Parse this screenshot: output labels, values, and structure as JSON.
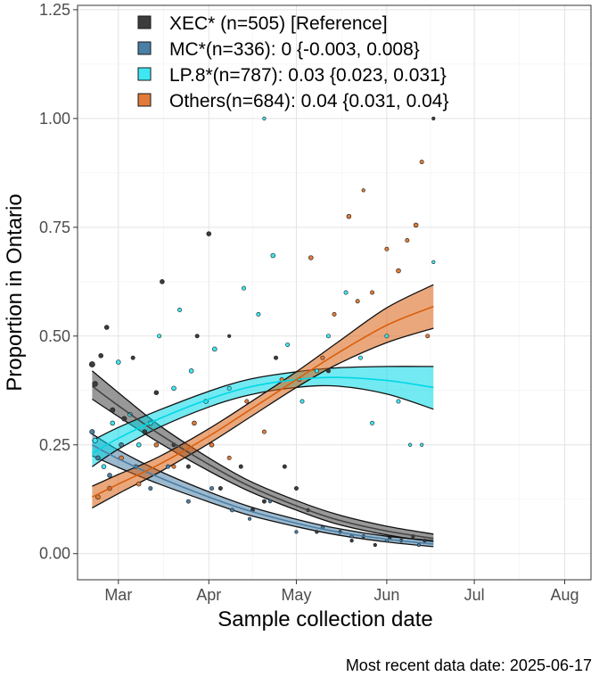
{
  "chart_data": {
    "type": "scatter",
    "title": "",
    "xlabel": "Sample collection date",
    "ylabel": "Proportion in Ontario",
    "caption": "Most recent data date: 2025-06-17",
    "xlim": [
      "2025-02-15",
      "2025-08-10"
    ],
    "ylim": [
      -0.06,
      1.26
    ],
    "x_ticks": [
      {
        "date": "2025-03-01",
        "label": "Mar"
      },
      {
        "date": "2025-04-01",
        "label": "Apr"
      },
      {
        "date": "2025-05-01",
        "label": "May"
      },
      {
        "date": "2025-06-01",
        "label": "Jun"
      },
      {
        "date": "2025-07-01",
        "label": "Jul"
      },
      {
        "date": "2025-08-01",
        "label": "Aug"
      }
    ],
    "y_ticks": [
      0.0,
      0.25,
      0.5,
      0.75,
      1.0,
      1.25
    ],
    "y_tick_labels": [
      "0.00",
      "0.25",
      "0.50",
      "0.75",
      "1.00",
      "1.25"
    ],
    "grid": true,
    "legend_position": "top-left",
    "series": [
      {
        "key": "xec",
        "legend": "XEC* (n=505)  [Reference]",
        "color": "#444444",
        "point_color": "#3c3c3c",
        "fit": [
          {
            "date": "2025-02-20",
            "y": 0.385,
            "lo": 0.355,
            "hi": 0.42
          },
          {
            "date": "2025-03-01",
            "y": 0.34,
            "lo": 0.315,
            "hi": 0.37
          },
          {
            "date": "2025-03-15",
            "y": 0.275,
            "lo": 0.255,
            "hi": 0.295
          },
          {
            "date": "2025-04-01",
            "y": 0.205,
            "lo": 0.19,
            "hi": 0.22
          },
          {
            "date": "2025-04-15",
            "y": 0.155,
            "lo": 0.143,
            "hi": 0.167
          },
          {
            "date": "2025-05-01",
            "y": 0.11,
            "lo": 0.1,
            "hi": 0.122
          },
          {
            "date": "2025-05-15",
            "y": 0.078,
            "lo": 0.068,
            "hi": 0.09
          },
          {
            "date": "2025-06-01",
            "y": 0.052,
            "lo": 0.043,
            "hi": 0.063
          },
          {
            "date": "2025-06-17",
            "y": 0.035,
            "lo": 0.027,
            "hi": 0.045
          }
        ],
        "points": [
          {
            "date": "2025-02-20",
            "y": 0.435,
            "n": 6
          },
          {
            "date": "2025-02-21",
            "y": 0.39,
            "n": 5
          },
          {
            "date": "2025-02-23",
            "y": 0.455,
            "n": 3
          },
          {
            "date": "2025-02-25",
            "y": 0.52,
            "n": 3
          },
          {
            "date": "2025-02-27",
            "y": 0.33,
            "n": 4
          },
          {
            "date": "2025-03-03",
            "y": 0.31,
            "n": 4
          },
          {
            "date": "2025-03-06",
            "y": 0.45,
            "n": 2
          },
          {
            "date": "2025-03-10",
            "y": 0.28,
            "n": 3
          },
          {
            "date": "2025-03-14",
            "y": 0.37,
            "n": 3
          },
          {
            "date": "2025-03-16",
            "y": 0.625,
            "n": 3
          },
          {
            "date": "2025-03-20",
            "y": 0.25,
            "n": 2
          },
          {
            "date": "2025-03-25",
            "y": 0.2,
            "n": 2
          },
          {
            "date": "2025-03-28",
            "y": 0.5,
            "n": 2
          },
          {
            "date": "2025-04-01",
            "y": 0.735,
            "n": 3
          },
          {
            "date": "2025-04-05",
            "y": 0.15,
            "n": 2
          },
          {
            "date": "2025-04-08",
            "y": 0.5,
            "n": 1
          },
          {
            "date": "2025-04-12",
            "y": 0.2,
            "n": 2
          },
          {
            "date": "2025-04-16",
            "y": 0.1,
            "n": 2
          },
          {
            "date": "2025-04-20",
            "y": 0.12,
            "n": 2
          },
          {
            "date": "2025-04-24",
            "y": 0.45,
            "n": 2
          },
          {
            "date": "2025-04-27",
            "y": 0.2,
            "n": 2
          },
          {
            "date": "2025-05-01",
            "y": 0.15,
            "n": 2
          },
          {
            "date": "2025-05-05",
            "y": 0.1,
            "n": 1
          },
          {
            "date": "2025-05-08",
            "y": 0.05,
            "n": 1
          },
          {
            "date": "2025-05-12",
            "y": 0.42,
            "n": 2
          },
          {
            "date": "2025-05-16",
            "y": 0.05,
            "n": 1
          },
          {
            "date": "2025-05-20",
            "y": 0.03,
            "n": 1
          },
          {
            "date": "2025-05-24",
            "y": 0.04,
            "n": 1
          },
          {
            "date": "2025-05-28",
            "y": 0.02,
            "n": 1
          },
          {
            "date": "2025-06-02",
            "y": 0.035,
            "n": 1
          },
          {
            "date": "2025-06-06",
            "y": 0.03,
            "n": 1
          },
          {
            "date": "2025-06-10",
            "y": 0.04,
            "n": 1
          },
          {
            "date": "2025-06-14",
            "y": 0.03,
            "n": 1
          },
          {
            "date": "2025-06-17",
            "y": 1.0,
            "n": 1
          }
        ]
      },
      {
        "key": "mc",
        "legend": "MC*(n=336): 0 {-0.003, 0.008}",
        "color": "#4a7fa6",
        "point_color": "#4a7fa6",
        "fit": [
          {
            "date": "2025-02-20",
            "y": 0.25,
            "lo": 0.225,
            "hi": 0.275
          },
          {
            "date": "2025-03-01",
            "y": 0.218,
            "lo": 0.198,
            "hi": 0.238
          },
          {
            "date": "2025-03-15",
            "y": 0.175,
            "lo": 0.16,
            "hi": 0.19
          },
          {
            "date": "2025-04-01",
            "y": 0.13,
            "lo": 0.119,
            "hi": 0.142
          },
          {
            "date": "2025-04-15",
            "y": 0.098,
            "lo": 0.088,
            "hi": 0.108
          },
          {
            "date": "2025-05-01",
            "y": 0.07,
            "lo": 0.062,
            "hi": 0.079
          },
          {
            "date": "2025-05-15",
            "y": 0.05,
            "lo": 0.043,
            "hi": 0.058
          },
          {
            "date": "2025-06-01",
            "y": 0.033,
            "lo": 0.027,
            "hi": 0.04
          },
          {
            "date": "2025-06-17",
            "y": 0.022,
            "lo": 0.016,
            "hi": 0.03
          }
        ],
        "points": [
          {
            "date": "2025-02-20",
            "y": 0.28,
            "n": 4
          },
          {
            "date": "2025-02-22",
            "y": 0.22,
            "n": 3
          },
          {
            "date": "2025-02-26",
            "y": 0.18,
            "n": 3
          },
          {
            "date": "2025-03-02",
            "y": 0.25,
            "n": 3
          },
          {
            "date": "2025-03-07",
            "y": 0.2,
            "n": 2
          },
          {
            "date": "2025-03-12",
            "y": 0.15,
            "n": 2
          },
          {
            "date": "2025-03-18",
            "y": 0.2,
            "n": 2
          },
          {
            "date": "2025-03-25",
            "y": 0.12,
            "n": 2
          },
          {
            "date": "2025-04-02",
            "y": 0.15,
            "n": 2
          },
          {
            "date": "2025-04-09",
            "y": 0.1,
            "n": 2
          },
          {
            "date": "2025-04-15",
            "y": 0.08,
            "n": 1
          },
          {
            "date": "2025-04-22",
            "y": 0.12,
            "n": 1
          },
          {
            "date": "2025-05-01",
            "y": 0.05,
            "n": 1
          },
          {
            "date": "2025-05-10",
            "y": 0.06,
            "n": 1
          },
          {
            "date": "2025-05-20",
            "y": 0.04,
            "n": 1
          },
          {
            "date": "2025-06-01",
            "y": 0.03,
            "n": 1
          },
          {
            "date": "2025-06-12",
            "y": 0.02,
            "n": 1
          }
        ]
      },
      {
        "key": "lp8",
        "legend": "LP.8*(n=787): 0.03 {0.023, 0.031}",
        "color": "#00d7e6",
        "point_color": "#3de8f2",
        "fit": [
          {
            "date": "2025-02-20",
            "y": 0.23,
            "lo": 0.2,
            "hi": 0.26
          },
          {
            "date": "2025-03-01",
            "y": 0.265,
            "lo": 0.24,
            "hi": 0.29
          },
          {
            "date": "2025-03-15",
            "y": 0.31,
            "lo": 0.29,
            "hi": 0.33
          },
          {
            "date": "2025-04-01",
            "y": 0.355,
            "lo": 0.337,
            "hi": 0.373
          },
          {
            "date": "2025-04-15",
            "y": 0.383,
            "lo": 0.365,
            "hi": 0.401
          },
          {
            "date": "2025-05-01",
            "y": 0.4,
            "lo": 0.382,
            "hi": 0.418
          },
          {
            "date": "2025-05-15",
            "y": 0.405,
            "lo": 0.385,
            "hi": 0.427
          },
          {
            "date": "2025-06-01",
            "y": 0.398,
            "lo": 0.367,
            "hi": 0.43
          },
          {
            "date": "2025-06-17",
            "y": 0.382,
            "lo": 0.332,
            "hi": 0.43
          }
        ],
        "points": [
          {
            "date": "2025-02-21",
            "y": 0.26,
            "n": 4
          },
          {
            "date": "2025-02-24",
            "y": 0.2,
            "n": 3
          },
          {
            "date": "2025-02-27",
            "y": 0.3,
            "n": 3
          },
          {
            "date": "2025-03-01",
            "y": 0.44,
            "n": 3
          },
          {
            "date": "2025-03-05",
            "y": 0.32,
            "n": 3
          },
          {
            "date": "2025-03-08",
            "y": 0.25,
            "n": 3
          },
          {
            "date": "2025-03-12",
            "y": 0.3,
            "n": 3
          },
          {
            "date": "2025-03-15",
            "y": 0.5,
            "n": 2
          },
          {
            "date": "2025-03-20",
            "y": 0.38,
            "n": 3
          },
          {
            "date": "2025-03-22",
            "y": 0.56,
            "n": 2
          },
          {
            "date": "2025-03-26",
            "y": 0.42,
            "n": 3
          },
          {
            "date": "2025-03-31",
            "y": 0.35,
            "n": 3
          },
          {
            "date": "2025-04-03",
            "y": 0.47,
            "n": 3
          },
          {
            "date": "2025-04-08",
            "y": 0.38,
            "n": 2
          },
          {
            "date": "2025-04-13",
            "y": 0.61,
            "n": 2
          },
          {
            "date": "2025-04-18",
            "y": 0.55,
            "n": 2
          },
          {
            "date": "2025-04-20",
            "y": 1.0,
            "n": 1
          },
          {
            "date": "2025-04-23",
            "y": 0.685,
            "n": 3
          },
          {
            "date": "2025-04-28",
            "y": 0.48,
            "n": 2
          },
          {
            "date": "2025-05-03",
            "y": 0.35,
            "n": 2
          },
          {
            "date": "2025-05-08",
            "y": 0.42,
            "n": 2
          },
          {
            "date": "2025-05-12",
            "y": 0.5,
            "n": 2
          },
          {
            "date": "2025-05-18",
            "y": 0.6,
            "n": 2
          },
          {
            "date": "2025-05-23",
            "y": 0.45,
            "n": 2
          },
          {
            "date": "2025-05-27",
            "y": 0.3,
            "n": 2
          },
          {
            "date": "2025-06-01",
            "y": 0.5,
            "n": 2
          },
          {
            "date": "2025-06-05",
            "y": 0.35,
            "n": 2
          },
          {
            "date": "2025-06-09",
            "y": 0.25,
            "n": 1
          },
          {
            "date": "2025-06-13",
            "y": 0.25,
            "n": 1
          },
          {
            "date": "2025-06-17",
            "y": 0.67,
            "n": 1
          }
        ]
      },
      {
        "key": "others",
        "legend": "Others(n=684): 0.04 {0.031, 0.04}",
        "color": "#d95f0e",
        "point_color": "#e07b39",
        "fit": [
          {
            "date": "2025-02-20",
            "y": 0.13,
            "lo": 0.105,
            "hi": 0.155
          },
          {
            "date": "2025-03-01",
            "y": 0.16,
            "lo": 0.138,
            "hi": 0.182
          },
          {
            "date": "2025-03-15",
            "y": 0.205,
            "lo": 0.187,
            "hi": 0.223
          },
          {
            "date": "2025-04-01",
            "y": 0.27,
            "lo": 0.253,
            "hi": 0.287
          },
          {
            "date": "2025-04-15",
            "y": 0.33,
            "lo": 0.313,
            "hi": 0.347
          },
          {
            "date": "2025-05-01",
            "y": 0.4,
            "lo": 0.382,
            "hi": 0.418
          },
          {
            "date": "2025-05-15",
            "y": 0.46,
            "lo": 0.435,
            "hi": 0.485
          },
          {
            "date": "2025-06-01",
            "y": 0.525,
            "lo": 0.485,
            "hi": 0.565
          },
          {
            "date": "2025-06-17",
            "y": 0.568,
            "lo": 0.518,
            "hi": 0.618
          }
        ],
        "points": [
          {
            "date": "2025-02-22",
            "y": 0.13,
            "n": 3
          },
          {
            "date": "2025-02-26",
            "y": 0.15,
            "n": 3
          },
          {
            "date": "2025-03-02",
            "y": 0.22,
            "n": 3
          },
          {
            "date": "2025-03-08",
            "y": 0.16,
            "n": 3
          },
          {
            "date": "2025-03-14",
            "y": 0.25,
            "n": 3
          },
          {
            "date": "2025-03-20",
            "y": 0.2,
            "n": 2
          },
          {
            "date": "2025-03-27",
            "y": 0.3,
            "n": 3
          },
          {
            "date": "2025-04-02",
            "y": 0.25,
            "n": 3
          },
          {
            "date": "2025-04-08",
            "y": 0.22,
            "n": 2
          },
          {
            "date": "2025-04-14",
            "y": 0.35,
            "n": 2
          },
          {
            "date": "2025-04-20",
            "y": 0.28,
            "n": 2
          },
          {
            "date": "2025-04-26",
            "y": 0.4,
            "n": 2
          },
          {
            "date": "2025-05-02",
            "y": 0.4,
            "n": 2
          },
          {
            "date": "2025-05-06",
            "y": 0.68,
            "n": 3
          },
          {
            "date": "2025-05-10",
            "y": 0.45,
            "n": 2
          },
          {
            "date": "2025-05-14",
            "y": 0.55,
            "n": 2
          },
          {
            "date": "2025-05-19",
            "y": 0.775,
            "n": 3
          },
          {
            "date": "2025-05-22",
            "y": 0.58,
            "n": 2
          },
          {
            "date": "2025-05-24",
            "y": 0.835,
            "n": 1
          },
          {
            "date": "2025-05-27",
            "y": 0.6,
            "n": 2
          },
          {
            "date": "2025-06-01",
            "y": 0.7,
            "n": 2
          },
          {
            "date": "2025-06-05",
            "y": 0.65,
            "n": 3
          },
          {
            "date": "2025-06-08",
            "y": 0.72,
            "n": 2
          },
          {
            "date": "2025-06-11",
            "y": 0.755,
            "n": 3
          },
          {
            "date": "2025-06-13",
            "y": 0.9,
            "n": 2
          },
          {
            "date": "2025-06-15",
            "y": 0.5,
            "n": 2
          }
        ]
      }
    ]
  }
}
